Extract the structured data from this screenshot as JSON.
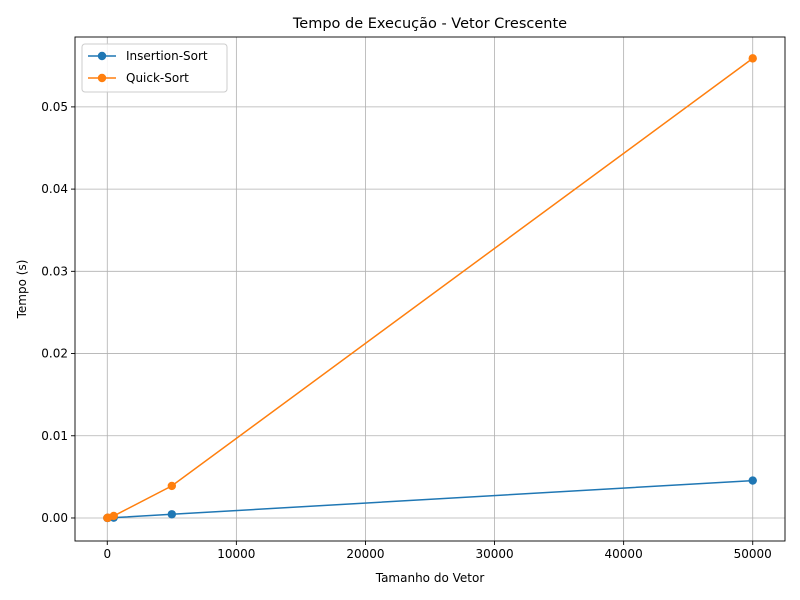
{
  "chart_data": {
    "type": "line",
    "title": "Tempo de Execução - Vetor Crescente",
    "xlabel": "Tamanho do Vetor",
    "ylabel": "Tempo (s)",
    "xlim": [
      -2500,
      52500
    ],
    "ylim": [
      -0.0028,
      0.0585
    ],
    "xticks": [
      0,
      10000,
      20000,
      30000,
      40000,
      50000
    ],
    "xtick_labels": [
      "0",
      "10000",
      "20000",
      "30000",
      "40000",
      "50000"
    ],
    "yticks": [
      0.0,
      0.01,
      0.02,
      0.03,
      0.04,
      0.05
    ],
    "ytick_labels": [
      "0.00",
      "0.01",
      "0.02",
      "0.03",
      "0.04",
      "0.05"
    ],
    "grid": true,
    "legend_position": "top-left",
    "series": [
      {
        "name": "Insertion-Sort",
        "color": "#1f77b4",
        "marker": "circle",
        "x": [
          5,
          50,
          500,
          5000,
          50000
        ],
        "y": [
          1e-06,
          5e-06,
          4e-05,
          0.00045,
          0.00455
        ]
      },
      {
        "name": "Quick-Sort",
        "color": "#ff7f0e",
        "marker": "circle",
        "x": [
          5,
          50,
          500,
          5000,
          50000
        ],
        "y": [
          5e-06,
          3e-05,
          0.00025,
          0.0039,
          0.0559
        ]
      }
    ]
  }
}
